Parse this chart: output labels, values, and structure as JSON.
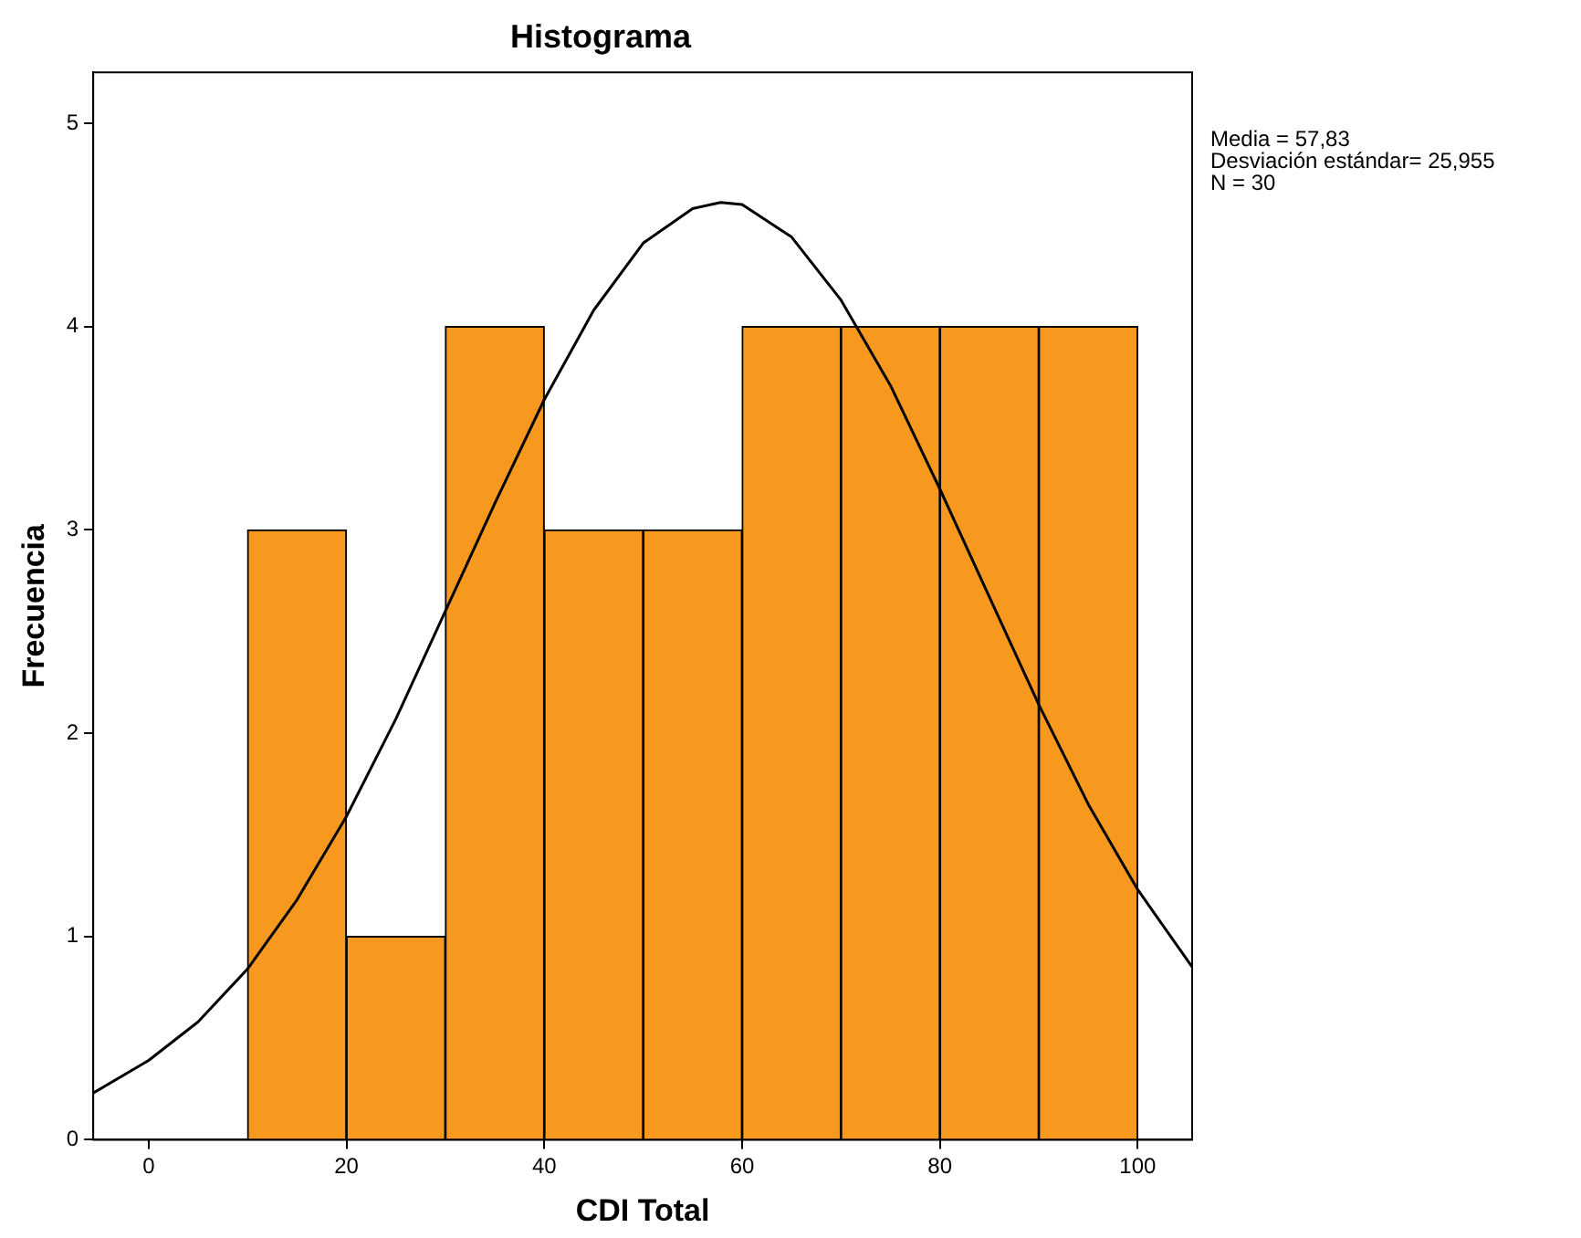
{
  "chart_data": {
    "type": "histogram",
    "title": "Histograma",
    "xlabel": "CDI Total",
    "ylabel": "Frecuencia",
    "bins": [
      10,
      20,
      30,
      40,
      50,
      60,
      70,
      80,
      90,
      100
    ],
    "values": [
      3,
      1,
      4,
      3,
      3,
      4,
      4,
      4,
      4
    ],
    "color": "#f7991f",
    "series": [
      {
        "type": "line",
        "color": "#000000",
        "x": [
          -5.6,
          0,
          5,
          10,
          15,
          20,
          25,
          30,
          35,
          40,
          45,
          50,
          55,
          57.83,
          60,
          65,
          70,
          75,
          80,
          85,
          90,
          95,
          100,
          105.5
        ],
        "values": [
          0.23,
          0.39,
          0.58,
          0.84,
          1.18,
          1.59,
          2.07,
          2.6,
          3.13,
          3.64,
          4.08,
          4.41,
          4.58,
          4.61,
          4.6,
          4.44,
          4.13,
          3.71,
          3.2,
          2.67,
          2.14,
          1.65,
          1.23,
          0.85
        ]
      }
    ],
    "xlim": [
      -5.6,
      105.5
    ],
    "xticks": [
      0,
      20,
      40,
      60,
      80,
      100
    ],
    "ylim": [
      0,
      5.25
    ],
    "yticks": [
      0,
      1,
      2,
      3,
      4,
      5
    ],
    "grid": false,
    "legend": false,
    "marker": "none",
    "annotations": [
      "Media = 57,83",
      "Desviación estándar= 25,955",
      "N = 30"
    ]
  }
}
